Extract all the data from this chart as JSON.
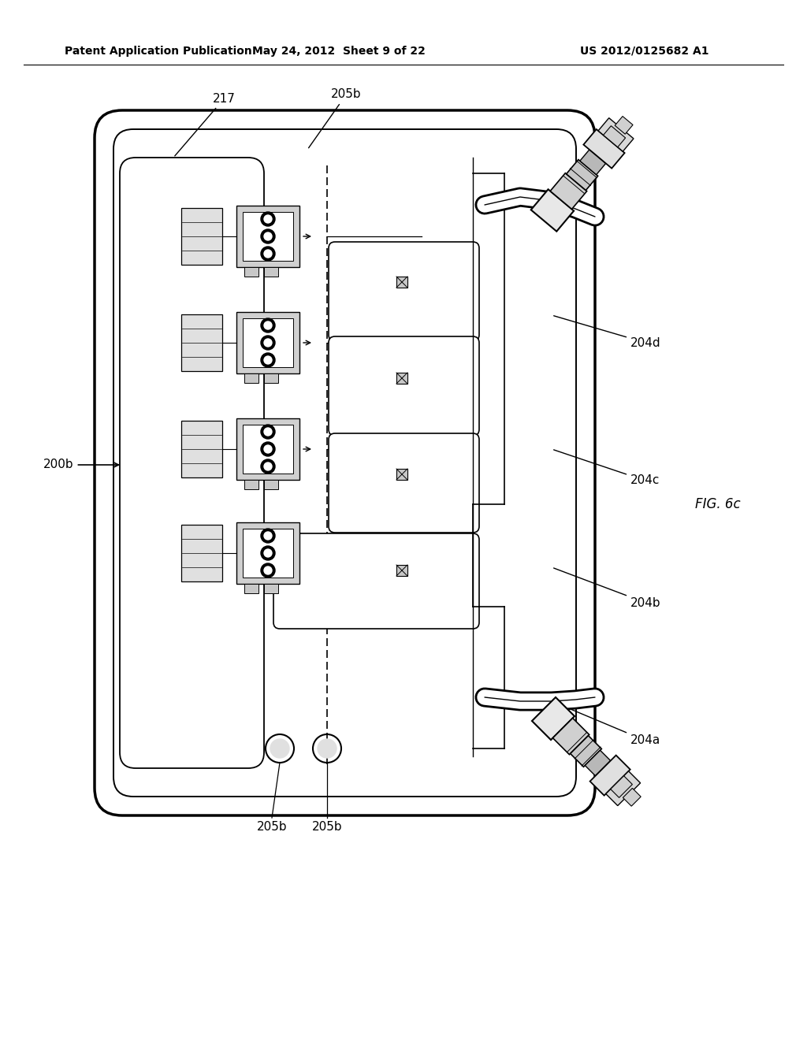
{
  "bg_color": "#ffffff",
  "header_text": "Patent Application Publication",
  "header_date": "May 24, 2012  Sheet 9 of 22",
  "header_patent": "US 2012/0125682 A1",
  "fig_label": "FIG. 6c",
  "label_200b": "200b",
  "label_217": "217",
  "label_205b_top": "205b",
  "label_205b_bot1": "205b",
  "label_205b_bot2": "205b",
  "label_204a": "204a",
  "label_204b": "204b",
  "label_204c": "204c",
  "label_204d": "204d",
  "line_color": "#000000",
  "lw_outer": 2.5,
  "lw_inner": 1.5,
  "lw_thin": 1.0,
  "font_size_label": 11,
  "font_size_header": 10
}
